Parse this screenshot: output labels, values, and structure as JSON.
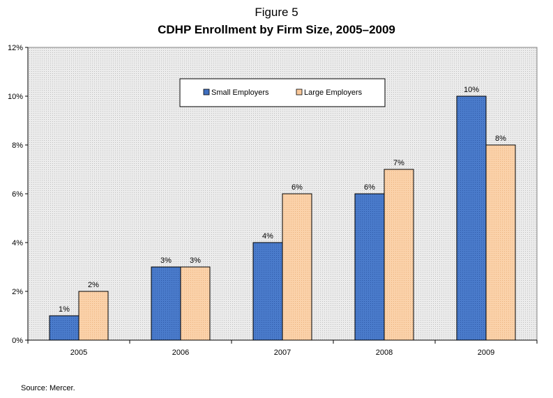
{
  "figure_label": "Figure 5",
  "source": "Source: Mercer.",
  "colors": {
    "small": "#3f6fbf",
    "large": "#f9c89a",
    "plot_bg": "#e2e2e2"
  },
  "chart_data": {
    "type": "bar",
    "title": "CDHP Enrollment by Firm Size, 2005–2009",
    "categories": [
      "2005",
      "2006",
      "2007",
      "2008",
      "2009"
    ],
    "series": [
      {
        "name": "Small Employers",
        "values": [
          1,
          3,
          4,
          6,
          10
        ],
        "labels": [
          "1%",
          "3%",
          "4%",
          "6%",
          "10%"
        ]
      },
      {
        "name": "Large Employers",
        "values": [
          2,
          3,
          6,
          7,
          8
        ],
        "labels": [
          "2%",
          "3%",
          "6%",
          "7%",
          "8%"
        ]
      }
    ],
    "ylim": [
      0,
      12
    ],
    "yticks": [
      0,
      2,
      4,
      6,
      8,
      10,
      12
    ],
    "ytick_labels": [
      "0%",
      "2%",
      "4%",
      "6%",
      "8%",
      "10%",
      "12%"
    ],
    "legend": "top-center",
    "grid": false
  }
}
